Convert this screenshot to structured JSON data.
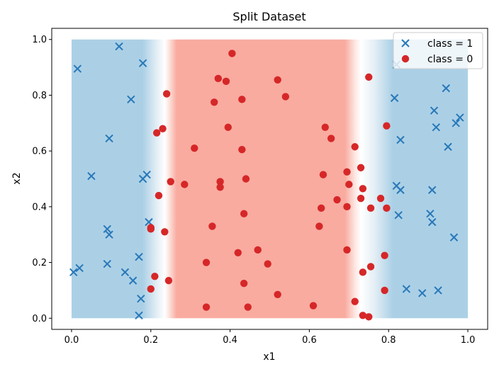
{
  "chart_data": {
    "type": "scatter",
    "title": "Split Dataset",
    "xlabel": "x1",
    "ylabel": "x2",
    "xlim": [
      -0.05,
      1.05
    ],
    "ylim": [
      -0.04,
      1.04
    ],
    "xticks": [
      "0.0",
      "0.2",
      "0.4",
      "0.6",
      "0.8",
      "1.0"
    ],
    "yticks": [
      "0.0",
      "0.2",
      "0.4",
      "0.6",
      "0.8",
      "1.0"
    ],
    "legend_position": "top-right",
    "background": {
      "description": "classifier decision regions over [0,1] x [0,1]",
      "class_0_region_x": [
        0.25,
        0.7
      ],
      "colors": {
        "class_1": "#abd0e6",
        "class_0": "#f9aba0",
        "boundary": "#ffffff"
      }
    },
    "series": [
      {
        "name": "class = 1",
        "marker": "x",
        "color": "#2878b8",
        "points": [
          [
            0.005,
            0.165
          ],
          [
            0.015,
            0.895
          ],
          [
            0.02,
            0.18
          ],
          [
            0.05,
            0.51
          ],
          [
            0.09,
            0.195
          ],
          [
            0.09,
            0.32
          ],
          [
            0.095,
            0.3
          ],
          [
            0.095,
            0.645
          ],
          [
            0.12,
            0.975
          ],
          [
            0.135,
            0.165
          ],
          [
            0.15,
            0.785
          ],
          [
            0.155,
            0.135
          ],
          [
            0.17,
            0.22
          ],
          [
            0.17,
            0.01
          ],
          [
            0.175,
            0.07
          ],
          [
            0.18,
            0.915
          ],
          [
            0.18,
            0.5
          ],
          [
            0.19,
            0.515
          ],
          [
            0.195,
            0.345
          ],
          [
            0.82,
            0.91
          ],
          [
            0.815,
            0.79
          ],
          [
            0.82,
            0.475
          ],
          [
            0.825,
            0.37
          ],
          [
            0.83,
            0.46
          ],
          [
            0.83,
            0.64
          ],
          [
            0.845,
            0.105
          ],
          [
            0.885,
            0.09
          ],
          [
            0.905,
            0.375
          ],
          [
            0.91,
            0.345
          ],
          [
            0.91,
            0.46
          ],
          [
            0.915,
            0.745
          ],
          [
            0.92,
            0.685
          ],
          [
            0.925,
            0.1
          ],
          [
            0.945,
            0.825
          ],
          [
            0.95,
            0.615
          ],
          [
            0.965,
            0.29
          ],
          [
            0.97,
            0.7
          ],
          [
            0.98,
            0.72
          ]
        ]
      },
      {
        "name": "class = 0",
        "marker": "o",
        "color": "#d62728",
        "points": [
          [
            0.2,
            0.325
          ],
          [
            0.2,
            0.32
          ],
          [
            0.2,
            0.105
          ],
          [
            0.21,
            0.15
          ],
          [
            0.215,
            0.665
          ],
          [
            0.22,
            0.44
          ],
          [
            0.23,
            0.68
          ],
          [
            0.235,
            0.31
          ],
          [
            0.24,
            0.805
          ],
          [
            0.245,
            0.135
          ],
          [
            0.25,
            0.49
          ],
          [
            0.285,
            0.48
          ],
          [
            0.31,
            0.61
          ],
          [
            0.34,
            0.04
          ],
          [
            0.34,
            0.2
          ],
          [
            0.355,
            0.33
          ],
          [
            0.36,
            0.775
          ],
          [
            0.37,
            0.86
          ],
          [
            0.375,
            0.49
          ],
          [
            0.375,
            0.47
          ],
          [
            0.39,
            0.85
          ],
          [
            0.395,
            0.685
          ],
          [
            0.405,
            0.95
          ],
          [
            0.42,
            0.235
          ],
          [
            0.43,
            0.785
          ],
          [
            0.43,
            0.605
          ],
          [
            0.435,
            0.375
          ],
          [
            0.435,
            0.125
          ],
          [
            0.44,
            0.5
          ],
          [
            0.445,
            0.04
          ],
          [
            0.47,
            0.245
          ],
          [
            0.495,
            0.195
          ],
          [
            0.52,
            0.085
          ],
          [
            0.52,
            0.855
          ],
          [
            0.54,
            0.795
          ],
          [
            0.61,
            0.045
          ],
          [
            0.625,
            0.33
          ],
          [
            0.63,
            0.395
          ],
          [
            0.635,
            0.515
          ],
          [
            0.64,
            0.685
          ],
          [
            0.655,
            0.645
          ],
          [
            0.67,
            0.425
          ],
          [
            0.695,
            0.4
          ],
          [
            0.695,
            0.245
          ],
          [
            0.695,
            0.525
          ],
          [
            0.7,
            0.48
          ],
          [
            0.715,
            0.06
          ],
          [
            0.715,
            0.615
          ],
          [
            0.73,
            0.43
          ],
          [
            0.73,
            0.54
          ],
          [
            0.735,
            0.465
          ],
          [
            0.735,
            0.165
          ],
          [
            0.735,
            0.01
          ],
          [
            0.75,
            0.005
          ],
          [
            0.75,
            0.865
          ],
          [
            0.755,
            0.395
          ],
          [
            0.755,
            0.185
          ],
          [
            0.78,
            0.43
          ],
          [
            0.79,
            0.225
          ],
          [
            0.79,
            0.1
          ],
          [
            0.795,
            0.395
          ],
          [
            0.795,
            0.69
          ]
        ]
      }
    ]
  }
}
